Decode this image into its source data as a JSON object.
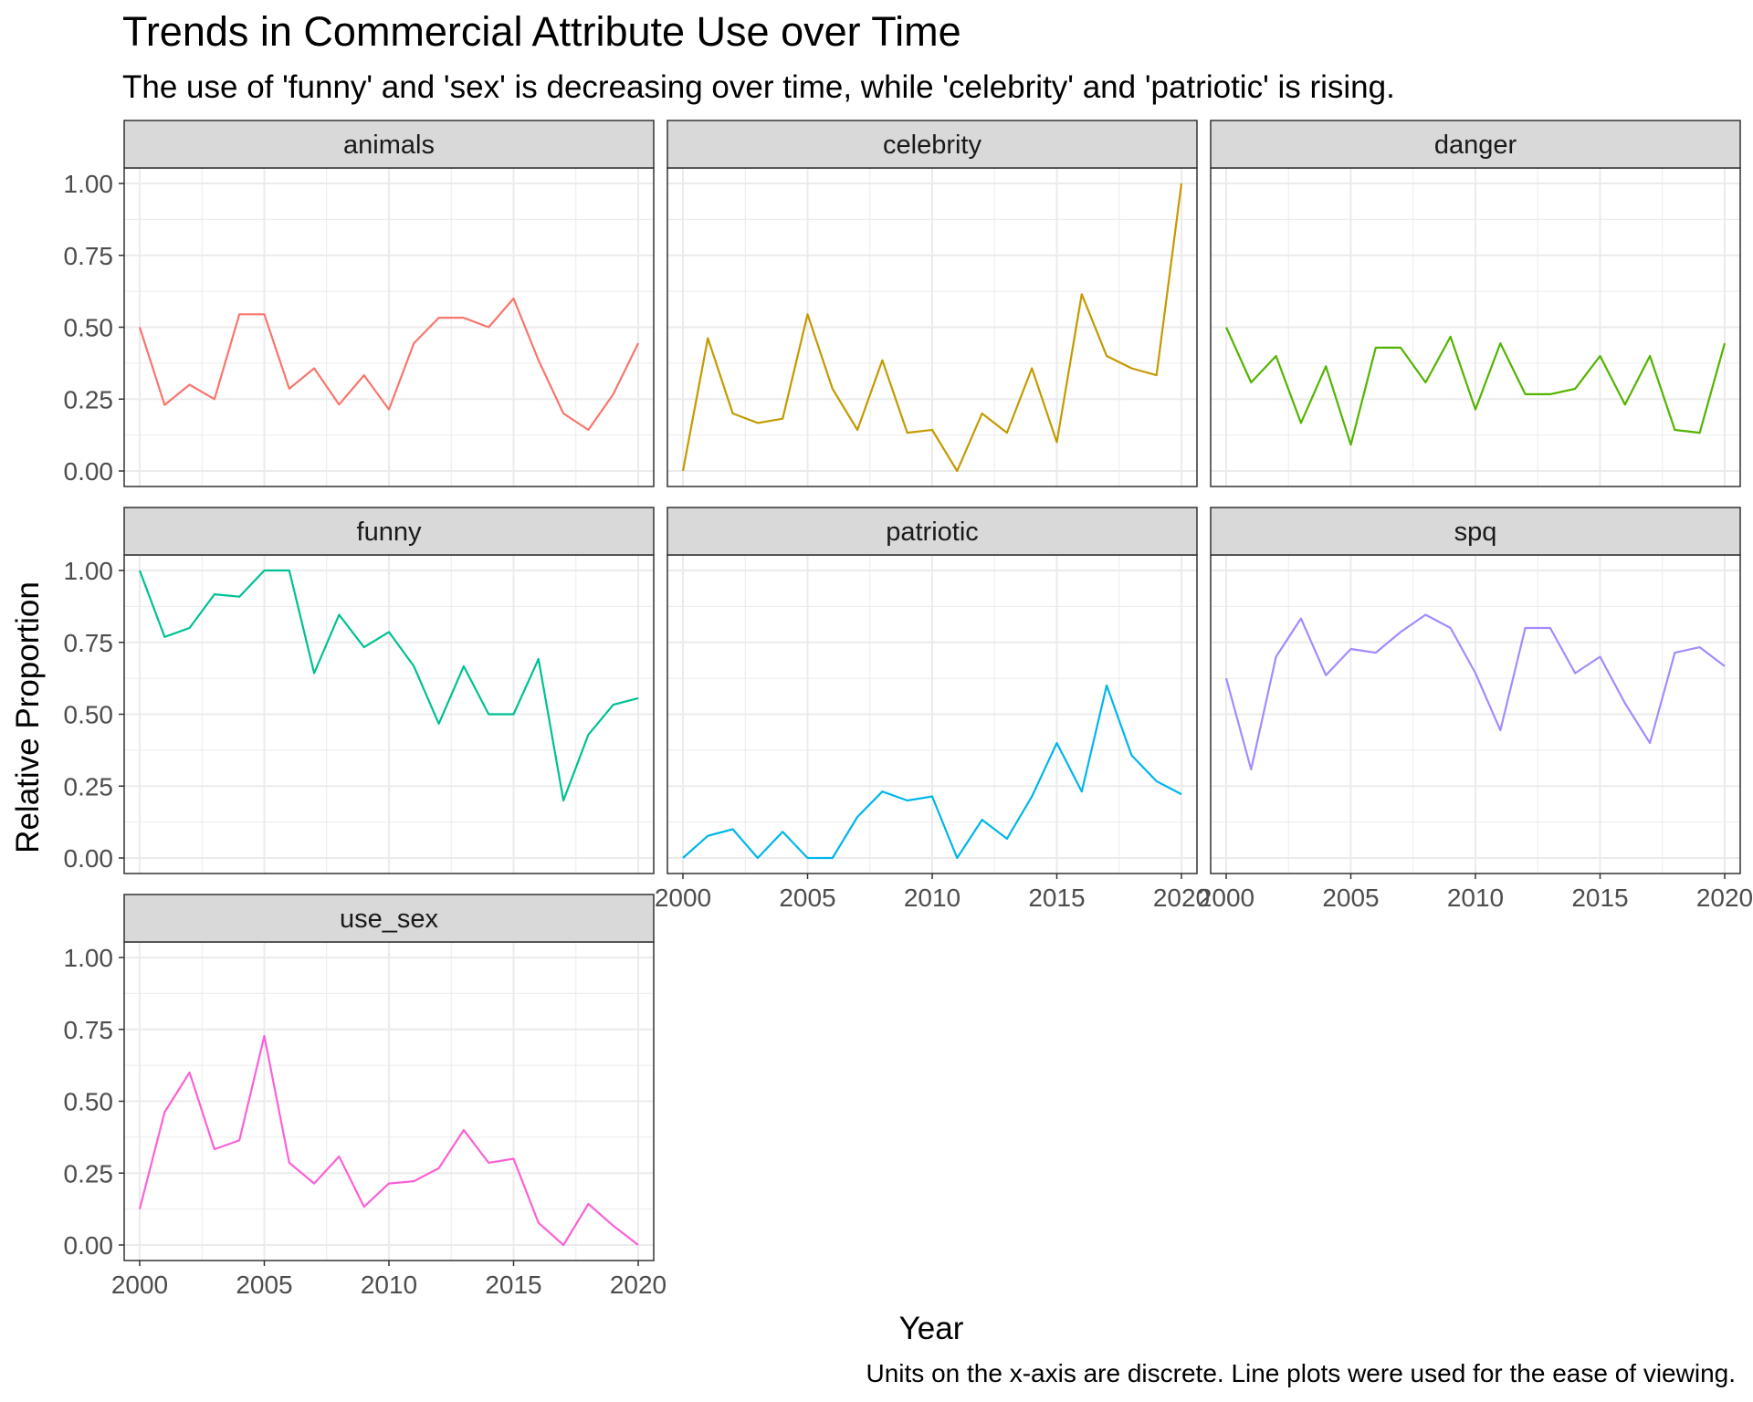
{
  "chart_data": {
    "type": "line",
    "title": "Trends in Commercial Attribute Use over Time",
    "subtitle": "The use of 'funny' and 'sex' is decreasing over time, while 'celebrity' and 'patriotic' is rising.",
    "xlabel": "Year",
    "ylabel": "Relative Proportion",
    "caption": "Units on the x-axis are discrete. Line plots were used for the ease of viewing.",
    "xlim": [
      2000,
      2020
    ],
    "ylim": [
      0,
      1
    ],
    "x_ticks": [
      2000,
      2005,
      2010,
      2015,
      2020
    ],
    "y_ticks": [
      0,
      0.25,
      0.5,
      0.75,
      1
    ],
    "y_tick_labels": [
      "0.00",
      "0.25",
      "0.50",
      "0.75",
      "1.00"
    ],
    "grid": true,
    "x": [
      2000,
      2001,
      2002,
      2003,
      2004,
      2005,
      2006,
      2007,
      2008,
      2009,
      2010,
      2011,
      2012,
      2013,
      2014,
      2015,
      2016,
      2017,
      2018,
      2019,
      2020
    ],
    "facets": [
      {
        "name": "animals",
        "color": "#F8766D",
        "values": [
          0.5,
          0.23,
          0.3,
          0.25,
          0.545,
          0.545,
          0.286,
          0.357,
          0.231,
          0.333,
          0.214,
          0.444,
          0.533,
          0.533,
          0.5,
          0.6,
          0.385,
          0.2,
          0.143,
          0.267,
          0.444
        ]
      },
      {
        "name": "celebrity",
        "color": "#C49A00",
        "values": [
          0.0,
          0.462,
          0.2,
          0.167,
          0.182,
          0.545,
          0.286,
          0.143,
          0.385,
          0.133,
          0.143,
          0.0,
          0.2,
          0.133,
          0.357,
          0.1,
          0.615,
          0.4,
          0.357,
          0.333,
          1.0
        ]
      },
      {
        "name": "danger",
        "color": "#53B400",
        "values": [
          0.5,
          0.308,
          0.4,
          0.167,
          0.364,
          0.091,
          0.429,
          0.429,
          0.308,
          0.467,
          0.214,
          0.444,
          0.267,
          0.267,
          0.286,
          0.4,
          0.231,
          0.4,
          0.143,
          0.133,
          0.444
        ]
      },
      {
        "name": "funny",
        "color": "#00C094",
        "values": [
          1.0,
          0.769,
          0.8,
          0.917,
          0.909,
          1.0,
          1.0,
          0.643,
          0.846,
          0.733,
          0.786,
          0.667,
          0.467,
          0.667,
          0.5,
          0.5,
          0.692,
          0.2,
          0.429,
          0.533,
          0.556
        ]
      },
      {
        "name": "patriotic",
        "color": "#00B6EB",
        "values": [
          0.0,
          0.077,
          0.1,
          0.0,
          0.091,
          0.0,
          0.0,
          0.143,
          0.231,
          0.2,
          0.214,
          0.0,
          0.133,
          0.067,
          0.214,
          0.4,
          0.231,
          0.6,
          0.357,
          0.267,
          0.222
        ]
      },
      {
        "name": "spq",
        "color": "#A58AFF",
        "values": [
          0.625,
          0.308,
          0.7,
          0.833,
          0.636,
          0.727,
          0.714,
          0.786,
          0.846,
          0.8,
          0.643,
          0.444,
          0.8,
          0.8,
          0.643,
          0.7,
          0.538,
          0.4,
          0.714,
          0.733,
          0.667
        ]
      },
      {
        "name": "use_sex",
        "color": "#FB61D7",
        "values": [
          0.125,
          0.462,
          0.6,
          0.333,
          0.364,
          0.727,
          0.286,
          0.214,
          0.308,
          0.133,
          0.214,
          0.222,
          0.267,
          0.4,
          0.286,
          0.3,
          0.077,
          0.0,
          0.143,
          0.067,
          0.0
        ]
      }
    ]
  }
}
